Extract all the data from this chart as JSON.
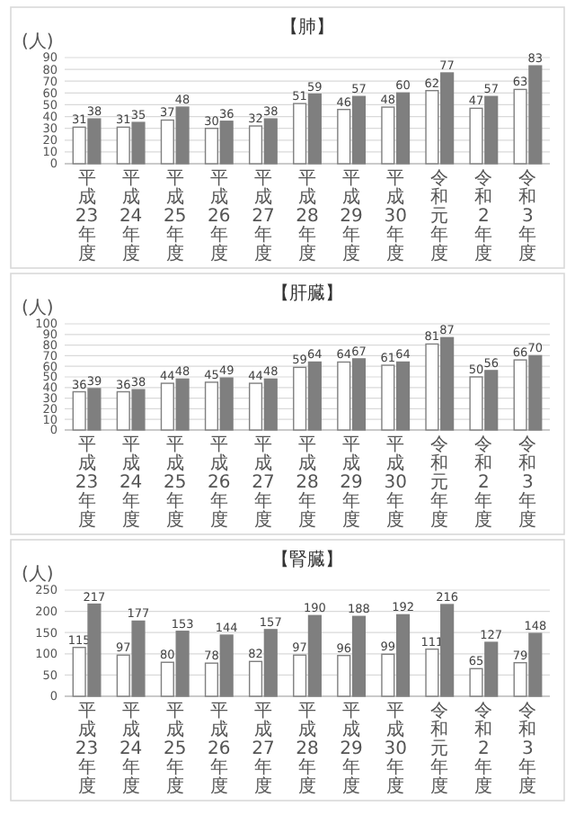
{
  "chart_data": [
    {
      "type": "bar",
      "title": "【肺】",
      "ylabel": "(人)",
      "categories": [
        "平成23年度",
        "平成24年度",
        "平成25年度",
        "平成26年度",
        "平成27年度",
        "平成28年度",
        "平成29年度",
        "平成30年度",
        "令和元年度",
        "令和2年度",
        "令和3年度"
      ],
      "series": [
        {
          "color": "#ffffff",
          "values": [
            31,
            31,
            37,
            30,
            32,
            51,
            46,
            48,
            62,
            47,
            63
          ]
        },
        {
          "color": "#7f7f7f",
          "values": [
            38,
            35,
            48,
            36,
            38,
            59,
            57,
            60,
            77,
            57,
            83
          ]
        }
      ],
      "ylim": [
        0,
        90
      ],
      "yticks": [
        0,
        10,
        20,
        30,
        40,
        50,
        60,
        70,
        80,
        90
      ],
      "grid": "y",
      "data_labels": true
    },
    {
      "type": "bar",
      "title": "【肝臓】",
      "ylabel": "(人)",
      "categories": [
        "平成23年度",
        "平成24年度",
        "平成25年度",
        "平成26年度",
        "平成27年度",
        "平成28年度",
        "平成29年度",
        "平成30年度",
        "令和元年度",
        "令和2年度",
        "令和3年度"
      ],
      "series": [
        {
          "color": "#ffffff",
          "values": [
            36,
            36,
            44,
            45,
            44,
            59,
            64,
            61,
            81,
            50,
            66
          ]
        },
        {
          "color": "#7f7f7f",
          "values": [
            39,
            38,
            48,
            49,
            48,
            64,
            67,
            64,
            87,
            56,
            70
          ]
        }
      ],
      "ylim": [
        0,
        100
      ],
      "yticks": [
        0,
        10,
        20,
        30,
        40,
        50,
        60,
        70,
        80,
        90,
        100
      ],
      "grid": "y",
      "data_labels": true
    },
    {
      "type": "bar",
      "title": "【腎臓】",
      "ylabel": "(人)",
      "categories": [
        "平成23年度",
        "平成24年度",
        "平成25年度",
        "平成26年度",
        "平成27年度",
        "平成28年度",
        "平成29年度",
        "平成30年度",
        "令和元年度",
        "令和2年度",
        "令和3年度"
      ],
      "series": [
        {
          "color": "#ffffff",
          "values": [
            115,
            97,
            80,
            78,
            82,
            97,
            96,
            99,
            111,
            65,
            79
          ]
        },
        {
          "color": "#7f7f7f",
          "values": [
            217,
            177,
            153,
            144,
            157,
            190,
            188,
            192,
            216,
            127,
            148
          ]
        }
      ],
      "ylim": [
        0,
        250
      ],
      "yticks": [
        0,
        50,
        100,
        150,
        200,
        250
      ],
      "grid": "y",
      "data_labels": true
    }
  ]
}
